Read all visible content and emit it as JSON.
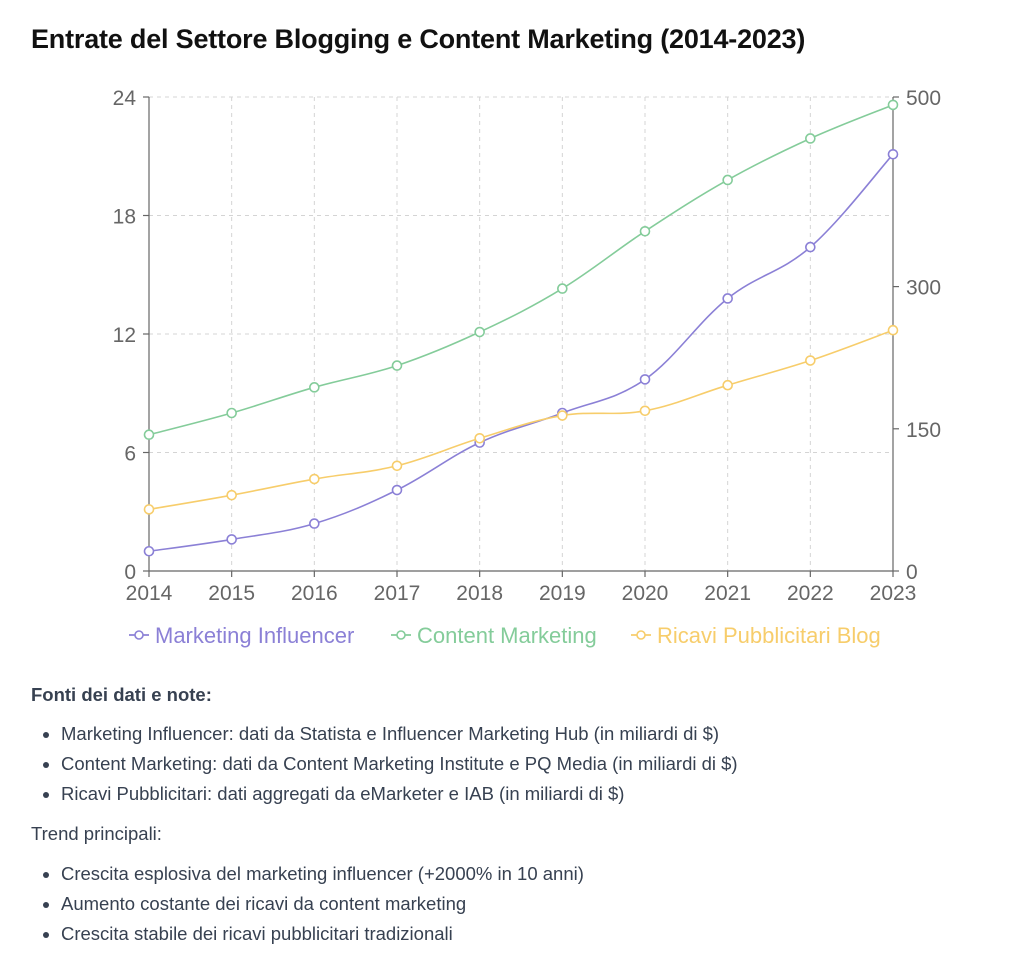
{
  "title": "Entrate del Settore Blogging e Content Marketing (2014-2023)",
  "chart_data": {
    "type": "line",
    "title": "Entrate del Settore Blogging e Content Marketing (2014-2023)",
    "categories": [
      "2014",
      "2015",
      "2016",
      "2017",
      "2018",
      "2019",
      "2020",
      "2021",
      "2022",
      "2023"
    ],
    "left_axis": {
      "ylim": [
        0,
        24
      ],
      "ticks": [
        "0",
        "6",
        "12",
        "18",
        "24"
      ]
    },
    "right_axis": {
      "ylim": [
        0,
        500
      ],
      "ticks": [
        "0",
        "150",
        "300",
        "500"
      ],
      "tick_values": [
        0,
        150,
        300,
        500
      ]
    },
    "grid": true,
    "legend": "bottom",
    "series": [
      {
        "name": "Marketing Influencer",
        "axis": "left",
        "color": "#8b80d6",
        "values": [
          1.0,
          1.6,
          2.4,
          4.1,
          6.5,
          8.0,
          9.7,
          13.8,
          16.4,
          21.1
        ]
      },
      {
        "name": "Content Marketing",
        "axis": "left",
        "color": "#84cc9a",
        "values": [
          6.9,
          8.0,
          9.3,
          10.4,
          12.1,
          14.3,
          17.2,
          19.8,
          21.9,
          23.6
        ]
      },
      {
        "name": "Ricavi Pubblicitari Blog",
        "axis": "right",
        "color": "#f7cd6b",
        "values": [
          65,
          80,
          97,
          111,
          140,
          164,
          169,
          196,
          222,
          254
        ]
      }
    ]
  },
  "notes": {
    "sources_heading": "Fonti dei dati e note:",
    "sources": [
      "Marketing Influencer: dati da Statista e Influencer Marketing Hub (in miliardi di $)",
      "Content Marketing: dati da Content Marketing Institute e PQ Media (in miliardi di $)",
      "Ricavi Pubblicitari: dati aggregati da eMarketer e IAB (in miliardi di $)"
    ],
    "trends_heading": "Trend principali:",
    "trends": [
      "Crescita esplosiva del marketing influencer (+2000% in 10 anni)",
      "Aumento costante dei ricavi da content marketing",
      "Crescita stabile dei ricavi pubblicitari tradizionali"
    ]
  }
}
